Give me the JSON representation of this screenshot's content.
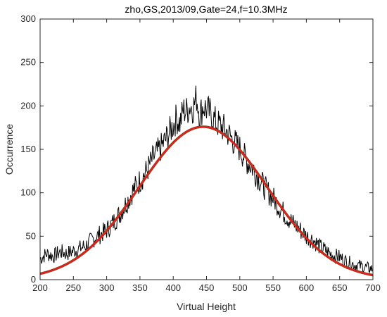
{
  "chart_data": {
    "type": "line",
    "title": "zho,GS,2013/09,Gate=24,f=10.3MHz",
    "xlabel": "Virtual Height",
    "ylabel": "Occurrence",
    "xlim": [
      200,
      700
    ],
    "ylim": [
      0,
      300
    ],
    "xticks": [
      200,
      250,
      300,
      350,
      400,
      450,
      500,
      550,
      600,
      650,
      700
    ],
    "yticks": [
      0,
      50,
      100,
      150,
      200,
      250,
      300
    ],
    "grid": false,
    "legend": "none",
    "series": [
      {
        "color": "#000000",
        "x": [
          200,
          210,
          220,
          230,
          240,
          250,
          260,
          270,
          280,
          290,
          300,
          310,
          320,
          330,
          340,
          350,
          360,
          370,
          380,
          390,
          400,
          405,
          410,
          415,
          420,
          425,
          430,
          435,
          440,
          445,
          450,
          455,
          460,
          465,
          470,
          480,
          490,
          500,
          510,
          520,
          530,
          540,
          550,
          560,
          570,
          580,
          590,
          600,
          610,
          620,
          630,
          640,
          650,
          660,
          670,
          680,
          690,
          700
        ],
        "y": [
          24,
          30,
          27,
          32,
          30,
          33,
          36,
          40,
          47,
          52,
          57,
          66,
          76,
          89,
          103,
          114,
          125,
          140,
          150,
          163,
          178,
          186,
          180,
          195,
          194,
          200,
          198,
          210,
          190,
          200,
          196,
          192,
          186,
          180,
          178,
          171,
          160,
          151,
          137,
          128,
          115,
          103,
          94,
          83,
          73,
          65,
          58,
          50,
          46,
          38,
          33,
          28,
          26,
          21,
          18,
          16,
          14,
          12
        ]
      },
      {
        "color": "#ee1c1c",
        "shadow_color": "#6b4a1e",
        "mean": 445,
        "sd": 96,
        "peak": 176
      }
    ]
  }
}
